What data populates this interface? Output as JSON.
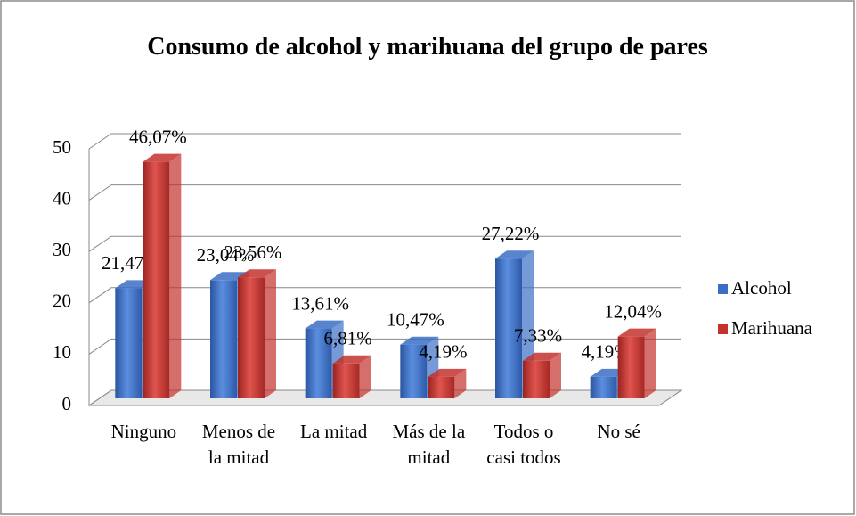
{
  "chart_data": {
    "type": "bar3d",
    "title": "Consumo de alcohol y marihuana del grupo de pares",
    "categories": [
      "Ninguno",
      "Menos de la mitad",
      "La mitad",
      "Más de la mitad",
      "Todos o casi todos",
      "No sé"
    ],
    "series": [
      {
        "name": "Alcohol",
        "color": "#3b6fc6",
        "values": [
          21.47,
          23.04,
          13.61,
          10.47,
          27.22,
          4.19
        ],
        "value_labels": [
          "21,47%",
          "23,04%",
          "13,61%",
          "10,47%",
          "27,22%",
          "4,19%"
        ]
      },
      {
        "name": "Marihuana",
        "color": "#c3322d",
        "values": [
          46.07,
          23.56,
          6.81,
          4.19,
          7.33,
          12.04
        ],
        "value_labels": [
          "46,07%",
          "23,56%",
          "6,81%",
          "4,19%",
          "7,33%",
          "12,04%"
        ]
      }
    ],
    "ylim": [
      0,
      50
    ],
    "yticks": [
      0,
      10,
      20,
      30,
      40,
      50
    ],
    "grid": true,
    "legend": "right"
  }
}
